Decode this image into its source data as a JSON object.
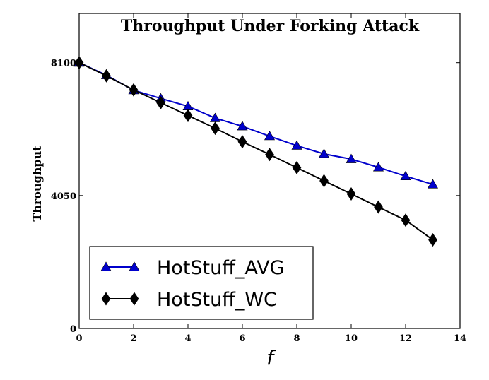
{
  "chart_data": {
    "type": "line",
    "title": "Throughput Under Forking Attack",
    "xlabel": "f",
    "ylabel": "Throughput",
    "xlim": [
      0,
      14
    ],
    "ylim": [
      0,
      9600
    ],
    "x_ticks": [
      0,
      2,
      4,
      6,
      8,
      10,
      12,
      14
    ],
    "y_ticks": [
      0,
      4050,
      8100
    ],
    "grid": false,
    "legend_position": "bottom-left",
    "x": [
      0,
      1,
      2,
      3,
      4,
      5,
      6,
      7,
      8,
      9,
      10,
      11,
      12,
      13
    ],
    "series": [
      {
        "name": "HotStuff_AVG",
        "color": "#0000cc",
        "marker": "triangle",
        "values": [
          8100,
          7720,
          7260,
          7010,
          6770,
          6410,
          6160,
          5860,
          5570,
          5320,
          5160,
          4910,
          4640,
          4390
        ]
      },
      {
        "name": "HotStuff_WC",
        "color": "#000000",
        "marker": "diamond",
        "values": [
          8100,
          7700,
          7270,
          6880,
          6490,
          6100,
          5690,
          5300,
          4900,
          4500,
          4100,
          3700,
          3300,
          2700
        ]
      }
    ]
  }
}
